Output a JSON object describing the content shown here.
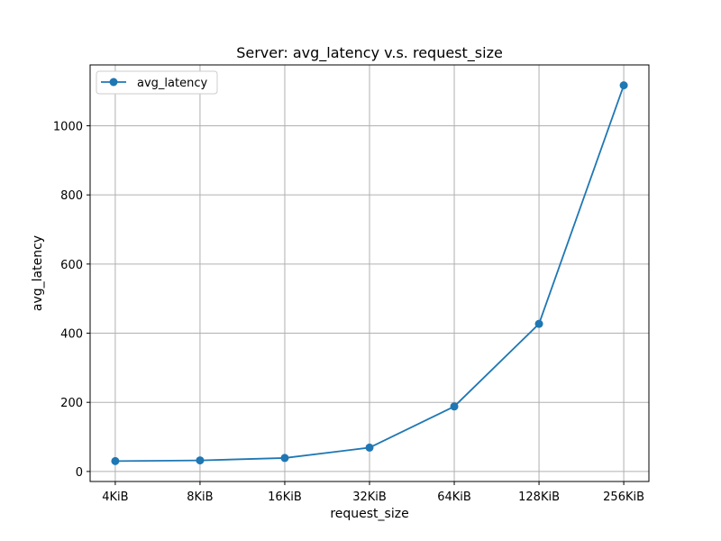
{
  "chart_data": {
    "type": "line",
    "title": "Server: avg_latency v.s. request_size",
    "xlabel": "request_size",
    "ylabel": "avg_latency",
    "categories": [
      "4KiB",
      "8KiB",
      "16KiB",
      "32KiB",
      "64KiB",
      "128KiB",
      "256KiB"
    ],
    "series": [
      {
        "name": "avg_latency",
        "color": "#1f77b4",
        "marker": "circle",
        "values": [
          30,
          32,
          39,
          69,
          188,
          427,
          1117
        ]
      }
    ],
    "yticks": [
      0,
      200,
      400,
      600,
      800,
      1000
    ],
    "ylim": [
      -29,
      1176
    ],
    "grid": true,
    "legend_position": "top-left"
  }
}
